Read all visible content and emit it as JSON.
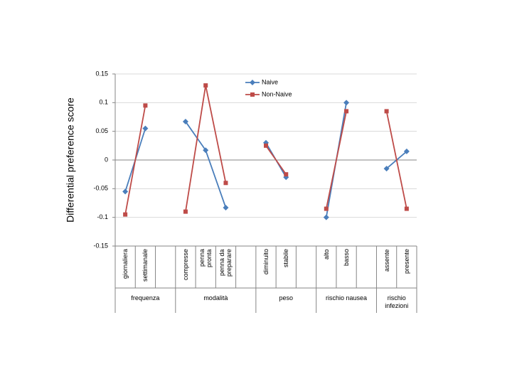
{
  "chart_data": {
    "type": "line",
    "y_label": "Differential preference score",
    "categories": [
      "giornaliera",
      "settimanale",
      null,
      "compresse",
      "penna pronta",
      "penna da preparare",
      null,
      "diminuito",
      "stabile",
      null,
      "alto",
      "basso",
      null,
      "assente",
      "presente"
    ],
    "groups": [
      "frequenza",
      "modalità",
      "peso",
      "rischio nausea",
      "rischio infezioni"
    ],
    "series": [
      {
        "name": "Naive",
        "color": "#4a7ebb",
        "marker": "diamond",
        "values": [
          -0.055,
          0.055,
          null,
          0.067,
          0.017,
          -0.083,
          null,
          0.03,
          -0.03,
          null,
          -0.1,
          0.1,
          null,
          -0.015,
          0.015
        ]
      },
      {
        "name": "Non-Naive",
        "color": "#be4b48",
        "marker": "square",
        "values": [
          -0.095,
          0.095,
          null,
          -0.09,
          0.13,
          -0.04,
          null,
          0.025,
          -0.025,
          null,
          -0.085,
          0.085,
          null,
          0.085,
          -0.085
        ]
      }
    ],
    "ylim": [
      -0.15,
      0.15
    ],
    "yticks": [
      0.15,
      0.1,
      0.05,
      0,
      -0.05,
      -0.1,
      -0.15
    ],
    "grid": true
  }
}
